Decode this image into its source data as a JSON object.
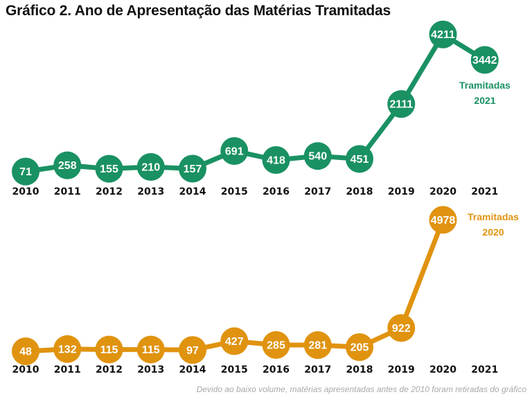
{
  "title": "Gráfico 2. Ano de Apresentação das Matérias Tramitadas",
  "footnote": "Devido ao baixo volume, matérias apresentadas antes de 2010 foram retiradas do gráfico",
  "chart_data": [
    {
      "type": "line",
      "title": "Tramitadas 2021",
      "annotation": [
        "Tramitadas",
        "2021"
      ],
      "color": "#1a9163",
      "xlabel": "",
      "ylabel": "",
      "x": [
        "2010",
        "2011",
        "2012",
        "2013",
        "2014",
        "2015",
        "2016",
        "2017",
        "2018",
        "2019",
        "2020",
        "2021"
      ],
      "values": [
        71,
        258,
        155,
        210,
        157,
        691,
        418,
        540,
        451,
        2111,
        4211,
        3442
      ],
      "data_labels": true,
      "grid": false,
      "ylim": [
        0,
        4400
      ]
    },
    {
      "type": "line",
      "title": "Tramitadas 2020",
      "annotation": [
        "Tramitadas",
        "2020"
      ],
      "color": "#e0930f",
      "xlabel": "",
      "ylabel": "",
      "x": [
        "2010",
        "2011",
        "2012",
        "2013",
        "2014",
        "2015",
        "2016",
        "2017",
        "2018",
        "2019",
        "2020",
        "2021"
      ],
      "values": [
        48,
        132,
        115,
        115,
        97,
        427,
        285,
        281,
        205,
        922,
        4978,
        null
      ],
      "data_labels": true,
      "grid": false,
      "ylim": [
        0,
        5200
      ]
    }
  ]
}
